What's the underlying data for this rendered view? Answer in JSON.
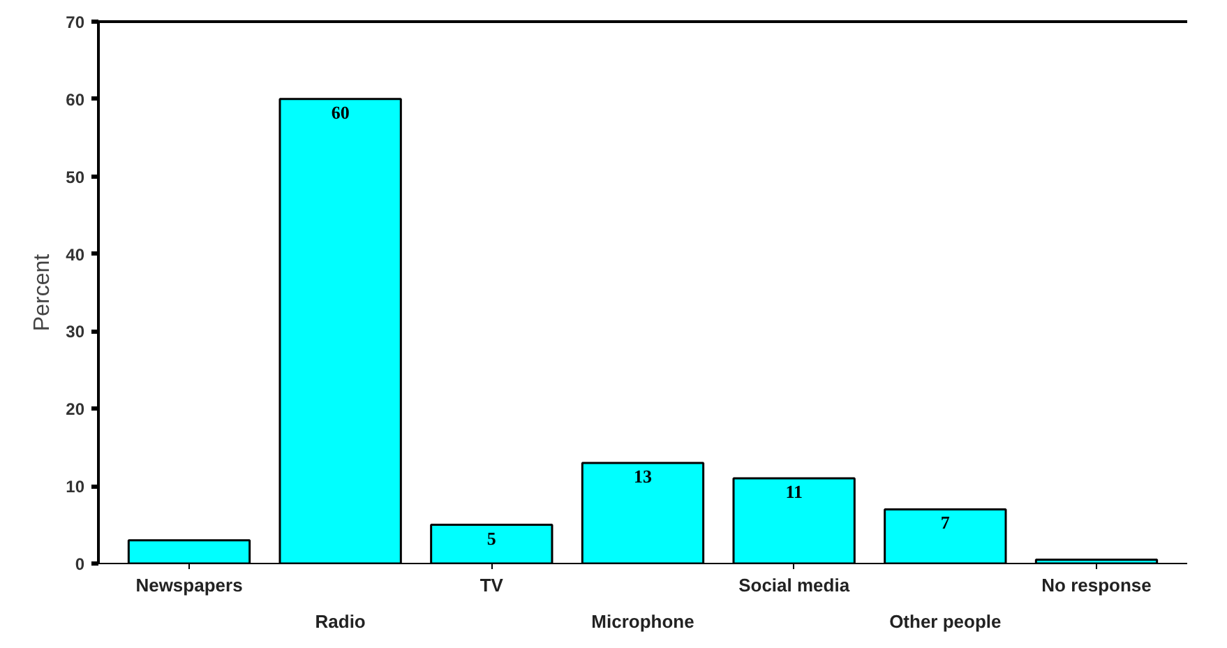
{
  "chart_data": {
    "type": "bar",
    "ylabel": "Percent",
    "categories": [
      "Newspapers",
      "Radio",
      "TV",
      "Microphone",
      "Social media",
      "Other people",
      "No response"
    ],
    "values": [
      3,
      60,
      5,
      13,
      11,
      7,
      0.5
    ],
    "value_labels": [
      null,
      "60",
      "5",
      "13",
      "11",
      "7",
      null
    ],
    "color": "#00ffff",
    "ylim": [
      0,
      70
    ],
    "yticks": [
      0,
      10,
      20,
      30,
      40,
      50,
      60,
      70
    ],
    "grid": false
  }
}
